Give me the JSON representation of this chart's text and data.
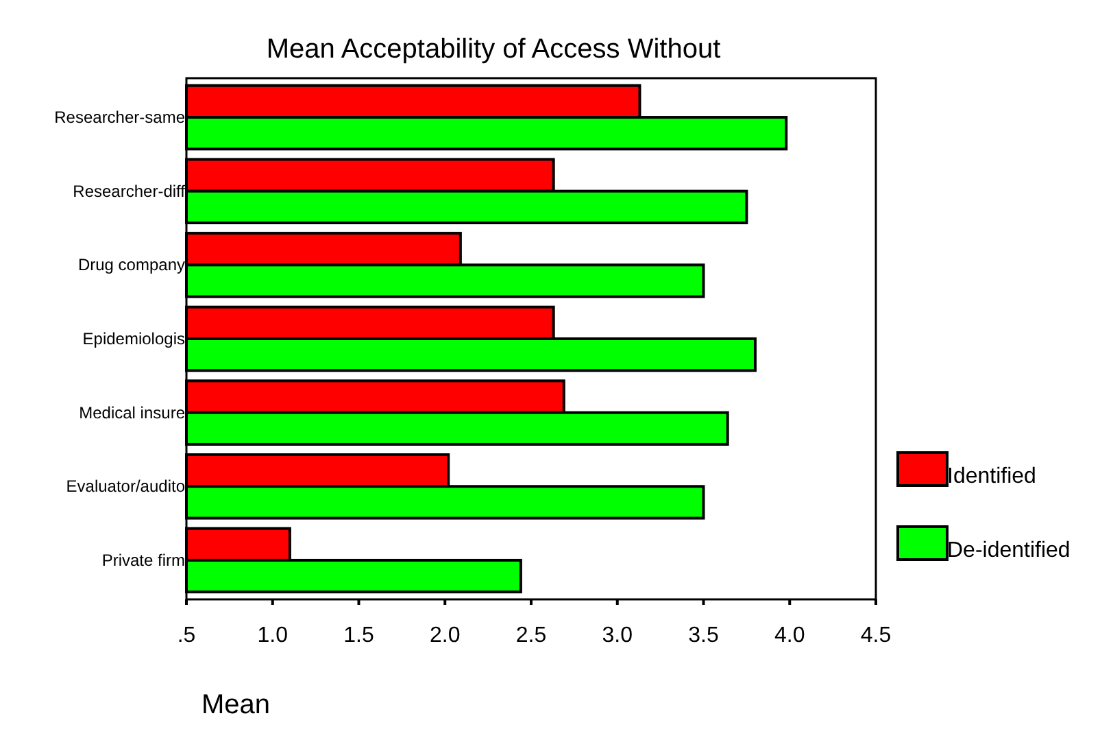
{
  "chart_data": {
    "type": "bar",
    "orientation": "horizontal",
    "title": "Mean Acceptability of Access Without",
    "xlabel": "Mean",
    "categories": [
      "Researcher-same",
      "Researcher-diff",
      "Drug company",
      "Epidemiologis",
      "Medical insure",
      "Evaluator/audito",
      "Private firm"
    ],
    "series": [
      {
        "name": "Identified",
        "color": "#ff0000",
        "values": [
          3.13,
          2.63,
          2.09,
          2.63,
          2.69,
          2.02,
          1.1
        ]
      },
      {
        "name": "De-identified",
        "color": "#00ff00",
        "values": [
          3.98,
          3.75,
          3.5,
          3.8,
          3.64,
          3.5,
          2.44
        ]
      }
    ],
    "xlim": [
      0.5,
      4.5
    ],
    "xticks": [
      {
        "value": 0.5,
        "label": ".5"
      },
      {
        "value": 1,
        "label": "1.0"
      },
      {
        "value": 1.5,
        "label": "1.5"
      },
      {
        "value": 2,
        "label": "2.0"
      },
      {
        "value": 2.5,
        "label": "2.5"
      },
      {
        "value": 3,
        "label": "3.0"
      },
      {
        "value": 3.5,
        "label": "3.5"
      },
      {
        "value": 4,
        "label": "4.0"
      },
      {
        "value": 4.5,
        "label": "4.5"
      }
    ],
    "legend": "right"
  }
}
